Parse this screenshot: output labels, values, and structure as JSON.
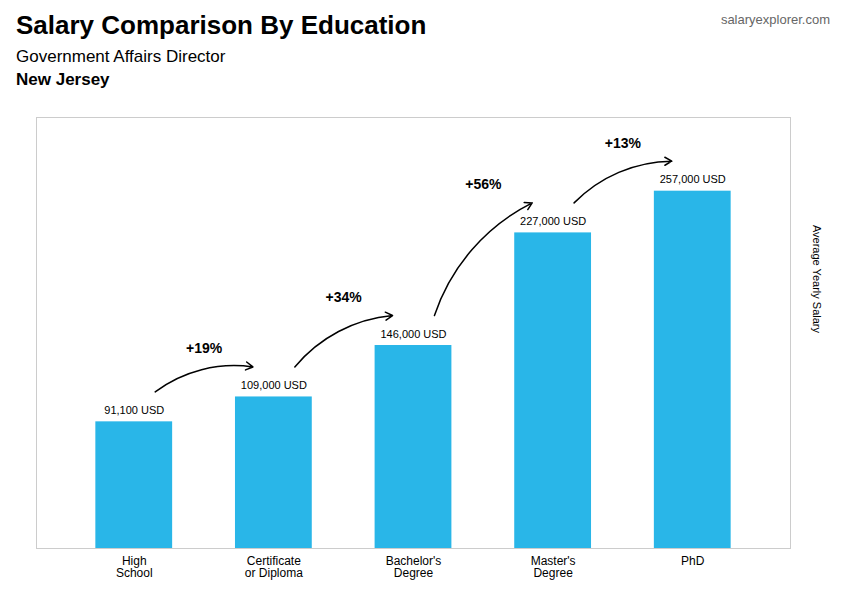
{
  "chart_data": {
    "type": "bar",
    "title": "Salary Comparison By Education",
    "subtitle": [
      "Government Affairs Director",
      "New Jersey"
    ],
    "caption": "salaryexplorer.com",
    "ylabel": "Average Yearly Salary",
    "categories": [
      "High\nSchool",
      "Certificate\nor Diploma",
      "Bachelor's\nDegree",
      "Master's\nDegree",
      "PhD"
    ],
    "values": [
      91100,
      109000,
      146000,
      227000,
      257000
    ],
    "value_labels": [
      "91,100 USD",
      "109,000 USD",
      "146,000 USD",
      "227,000 USD",
      "257,000 USD"
    ],
    "data_labels": true,
    "annotations": [
      "+19%",
      "+34%",
      "+56%",
      "+13%"
    ],
    "color": "#29b6e8",
    "ylim": [
      0,
      310000
    ],
    "yticks": [],
    "tick_labels": "x",
    "grid": false
  }
}
